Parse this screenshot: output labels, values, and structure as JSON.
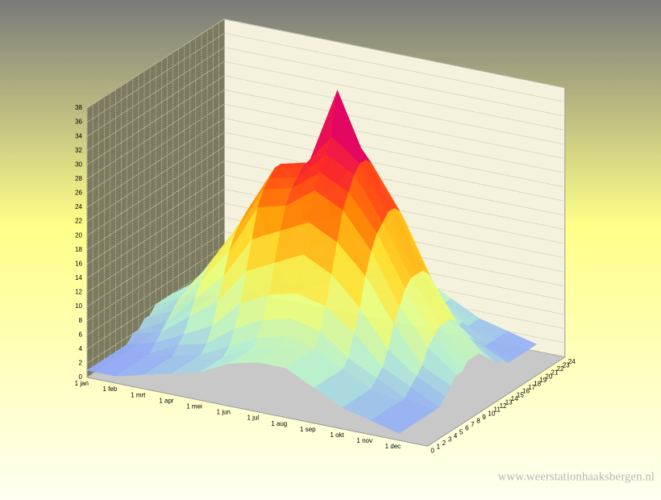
{
  "chart_data": {
    "type": "surface3d",
    "x": [
      "1 jan",
      "1 feb",
      "1 mrt",
      "1 apr",
      "1 mei",
      "1 jun",
      "1 jul",
      "1 aug",
      "1 sep",
      "1 okt",
      "1 nov",
      "1 dec"
    ],
    "z": [
      0,
      1,
      2,
      3,
      4,
      5,
      6,
      7,
      8,
      9,
      10,
      11,
      12,
      13,
      14,
      15,
      16,
      17,
      18,
      19,
      20,
      21,
      22,
      23,
      24
    ],
    "values": [
      [
        1,
        1,
        1,
        1,
        1,
        1,
        1,
        1,
        2,
        2,
        3,
        3,
        4,
        4,
        4,
        4,
        3,
        3,
        2,
        2,
        1,
        1,
        1,
        1,
        1
      ],
      [
        1,
        1,
        1,
        1,
        1,
        1,
        1,
        2,
        3,
        4,
        5,
        6,
        6,
        7,
        7,
        6,
        5,
        4,
        3,
        2,
        2,
        1,
        1,
        1,
        1
      ],
      [
        2,
        2,
        2,
        2,
        2,
        2,
        3,
        4,
        6,
        8,
        10,
        11,
        12,
        12,
        12,
        11,
        10,
        8,
        6,
        4,
        3,
        3,
        2,
        2,
        2
      ],
      [
        3,
        3,
        3,
        3,
        3,
        3,
        4,
        6,
        9,
        12,
        15,
        17,
        18,
        19,
        19,
        18,
        16,
        13,
        10,
        7,
        5,
        4,
        4,
        3,
        3
      ],
      [
        4,
        4,
        4,
        4,
        4,
        5,
        7,
        10,
        14,
        18,
        22,
        24,
        25,
        26,
        26,
        25,
        23,
        20,
        16,
        12,
        8,
        6,
        5,
        5,
        4
      ],
      [
        6,
        6,
        6,
        6,
        6,
        7,
        9,
        12,
        16,
        20,
        23,
        25,
        26,
        27,
        27,
        26,
        24,
        21,
        17,
        13,
        10,
        8,
        7,
        6,
        6
      ],
      [
        7,
        7,
        7,
        7,
        7,
        8,
        10,
        13,
        18,
        22,
        26,
        28,
        30,
        32,
        38,
        33,
        30,
        26,
        20,
        15,
        11,
        9,
        8,
        7,
        7
      ],
      [
        7,
        7,
        7,
        7,
        7,
        7,
        9,
        12,
        16,
        20,
        24,
        26,
        28,
        29,
        29,
        28,
        26,
        22,
        17,
        13,
        10,
        8,
        8,
        7,
        7
      ],
      [
        5,
        5,
        5,
        5,
        5,
        5,
        6,
        9,
        12,
        16,
        19,
        21,
        22,
        23,
        23,
        22,
        20,
        16,
        12,
        9,
        7,
        6,
        6,
        5,
        5
      ],
      [
        3,
        3,
        3,
        3,
        3,
        3,
        4,
        5,
        7,
        10,
        12,
        14,
        15,
        15,
        15,
        14,
        12,
        9,
        7,
        5,
        4,
        4,
        3,
        3,
        3
      ],
      [
        2,
        2,
        2,
        2,
        2,
        2,
        2,
        3,
        4,
        5,
        7,
        8,
        9,
        9,
        9,
        8,
        6,
        5,
        4,
        3,
        2,
        2,
        2,
        2,
        2
      ],
      [
        1,
        1,
        1,
        1,
        1,
        1,
        1,
        1,
        2,
        3,
        4,
        4,
        5,
        5,
        5,
        4,
        3,
        2,
        2,
        1,
        1,
        1,
        1,
        1,
        1
      ]
    ],
    "ylim": [
      0,
      38
    ],
    "yticks": [
      0,
      2,
      4,
      6,
      8,
      10,
      12,
      14,
      16,
      18,
      20,
      22,
      24,
      26,
      28,
      30,
      32,
      34,
      36,
      38
    ],
    "colors": [
      "#8c9cff",
      "#b4f0d4",
      "#e8ff80",
      "#ffe030",
      "#ff9000",
      "#ff3020",
      "#e0006a",
      "#9060ff"
    ],
    "grid": true,
    "watermark": "www.weerstationhaaksbergen.nl"
  }
}
